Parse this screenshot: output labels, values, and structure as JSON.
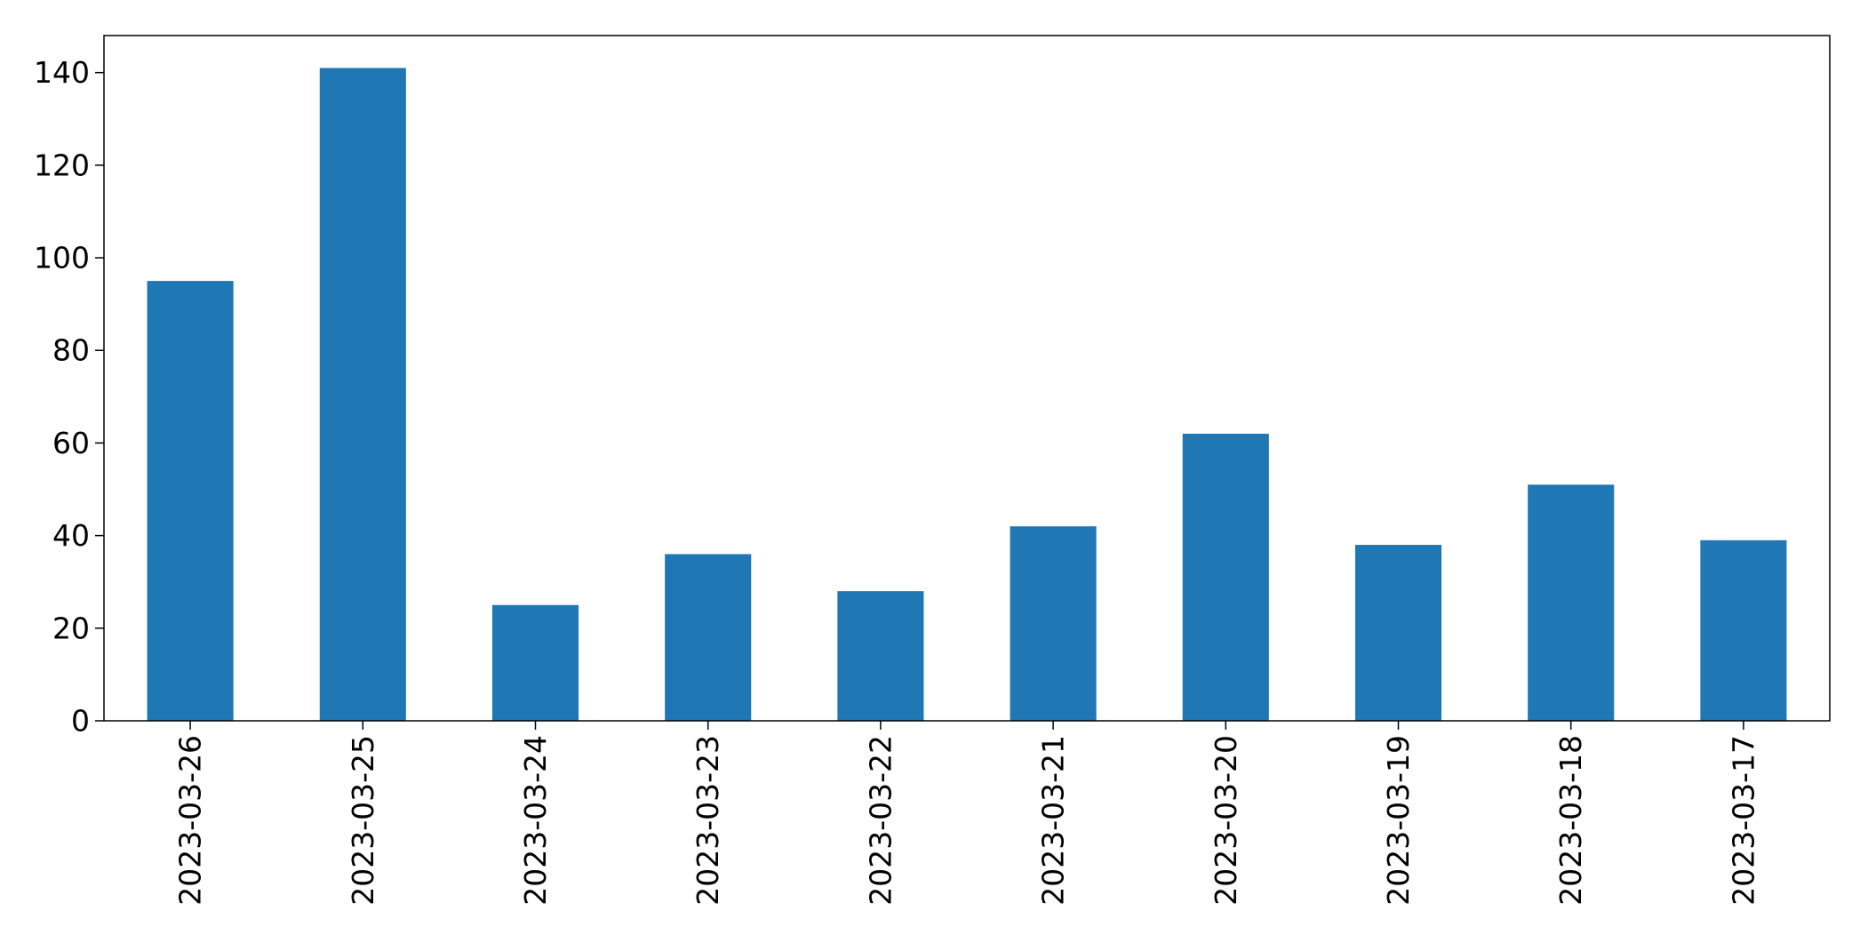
{
  "chart_data": {
    "type": "bar",
    "title": "",
    "xlabel": "",
    "ylabel": "",
    "categories": [
      "2023-03-26",
      "2023-03-25",
      "2023-03-24",
      "2023-03-23",
      "2023-03-22",
      "2023-03-21",
      "2023-03-20",
      "2023-03-19",
      "2023-03-18",
      "2023-03-17"
    ],
    "values": [
      95,
      141,
      25,
      36,
      28,
      42,
      62,
      38,
      51,
      39
    ],
    "ylim": [
      0,
      148
    ],
    "yticks": [
      0,
      20,
      40,
      60,
      80,
      100,
      120,
      140
    ],
    "bar_color": "#1f77b4",
    "grid": false,
    "legend": "none"
  }
}
